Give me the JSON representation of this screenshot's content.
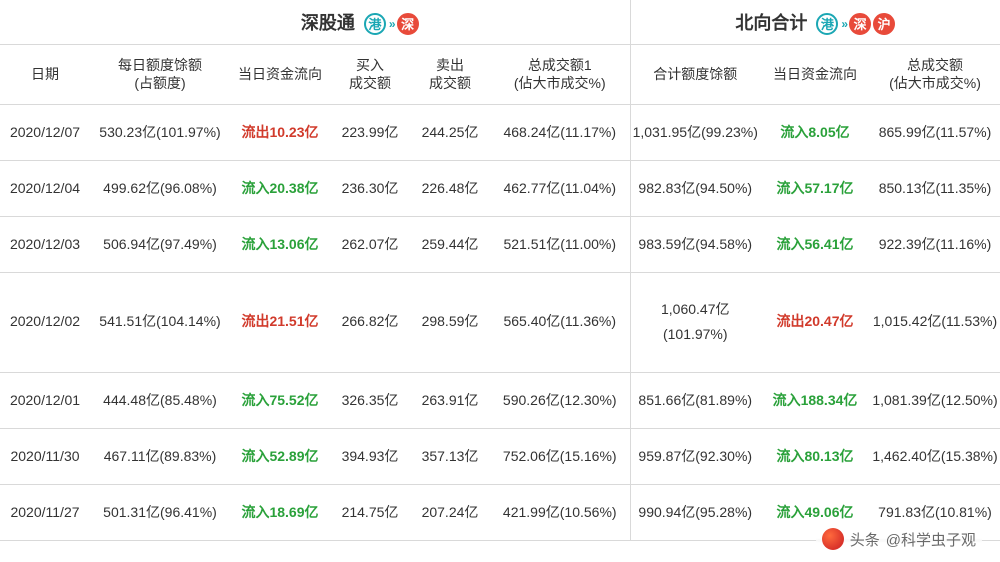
{
  "colors": {
    "border": "#d9d9d9",
    "text": "#333333",
    "inflow": "#2aa13a",
    "outflow": "#d13a2b",
    "badge_teal": "#1ba7b4",
    "badge_red": "#e84a3a",
    "background": "#ffffff"
  },
  "typography": {
    "font_family": "Microsoft YaHei",
    "header_fontsize": 18,
    "subheader_fontsize": 14,
    "cell_fontsize": 14
  },
  "sections": {
    "left": {
      "title": "深股通",
      "badges": [
        "港",
        "»",
        "深"
      ]
    },
    "right": {
      "title": "北向合计",
      "badges": [
        "港",
        "»",
        "深",
        "沪"
      ]
    }
  },
  "columns": {
    "date": "日期",
    "quota_l1": "每日额度馀额",
    "quota_l2": "(占额度)",
    "flow": "当日资金流向",
    "buy_l1": "买入",
    "buy_l2": "成交额",
    "sell_l1": "卖出",
    "sell_l2": "成交额",
    "tot1_l1": "总成交额1",
    "tot1_l2": "(佔大市成交%)",
    "quota2": "合计额度馀额",
    "flow2": "当日资金流向",
    "tot2_l1": "总成交额",
    "tot2_l2": "(佔大市成交%)"
  },
  "flow_labels": {
    "in": "流入",
    "out": "流出"
  },
  "rows": [
    {
      "date": "2020/12/07",
      "quota": "530.23亿(101.97%)",
      "flow_dir": "out",
      "flow_val": "10.23亿",
      "buy": "223.99亿",
      "sell": "244.25亿",
      "tot1": "468.24亿(11.17%)",
      "quota2": "1,031.95亿(99.23%)",
      "flow2_dir": "in",
      "flow2_val": "8.05亿",
      "tot2": "865.99亿(11.57%)"
    },
    {
      "date": "2020/12/04",
      "quota": "499.62亿(96.08%)",
      "flow_dir": "in",
      "flow_val": "20.38亿",
      "buy": "236.30亿",
      "sell": "226.48亿",
      "tot1": "462.77亿(11.04%)",
      "quota2": "982.83亿(94.50%)",
      "flow2_dir": "in",
      "flow2_val": "57.17亿",
      "tot2": "850.13亿(11.35%)"
    },
    {
      "date": "2020/12/03",
      "quota": "506.94亿(97.49%)",
      "flow_dir": "in",
      "flow_val": "13.06亿",
      "buy": "262.07亿",
      "sell": "259.44亿",
      "tot1": "521.51亿(11.00%)",
      "quota2": "983.59亿(94.58%)",
      "flow2_dir": "in",
      "flow2_val": "56.41亿",
      "tot2": "922.39亿(11.16%)"
    },
    {
      "date": "2020/12/02",
      "quota": "541.51亿(104.14%)",
      "flow_dir": "out",
      "flow_val": "21.51亿",
      "buy": "266.82亿",
      "sell": "298.59亿",
      "tot1": "565.40亿(11.36%)",
      "quota2_l1": "1,060.47亿",
      "quota2_l2": "(101.97%)",
      "flow2_dir": "out",
      "flow2_val": "20.47亿",
      "tot2": "1,015.42亿(11.53%)",
      "tall": true
    },
    {
      "date": "2020/12/01",
      "quota": "444.48亿(85.48%)",
      "flow_dir": "in",
      "flow_val": "75.52亿",
      "buy": "326.35亿",
      "sell": "263.91亿",
      "tot1": "590.26亿(12.30%)",
      "quota2": "851.66亿(81.89%)",
      "flow2_dir": "in",
      "flow2_val": "188.34亿",
      "tot2": "1,081.39亿(12.50%)"
    },
    {
      "date": "2020/11/30",
      "quota": "467.11亿(89.83%)",
      "flow_dir": "in",
      "flow_val": "52.89亿",
      "buy": "394.93亿",
      "sell": "357.13亿",
      "tot1": "752.06亿(15.16%)",
      "quota2": "959.87亿(92.30%)",
      "flow2_dir": "in",
      "flow2_val": "80.13亿",
      "tot2": "1,462.40亿(15.38%)"
    },
    {
      "date": "2020/11/27",
      "quota": "501.31亿(96.41%)",
      "flow_dir": "in",
      "flow_val": "18.69亿",
      "buy": "214.75亿",
      "sell": "207.24亿",
      "tot1": "421.99亿(10.56%)",
      "quota2": "990.94亿(95.28%)",
      "flow2_dir": "in",
      "flow2_val": "49.06亿",
      "tot2": "791.83亿(10.81%)"
    }
  ],
  "watermark": {
    "prefix": "头条",
    "handle": "@科学虫子观"
  }
}
